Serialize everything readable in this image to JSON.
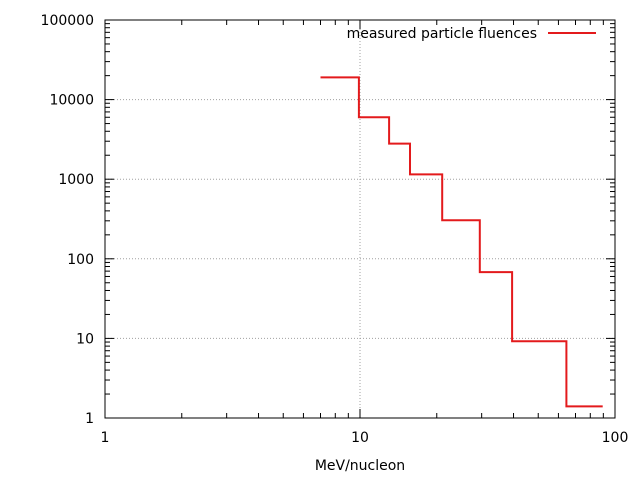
{
  "chart_data": {
    "type": "line",
    "title": "",
    "xlabel": "MeV/nucleon",
    "ylabel": "",
    "x_scale": "log",
    "y_scale": "log",
    "xlim": [
      1,
      100
    ],
    "ylim": [
      1,
      100000
    ],
    "grid": true,
    "legend_position": "top-right",
    "x_ticks": [
      "1",
      "10",
      "100"
    ],
    "y_ticks": [
      "1",
      "10",
      "100",
      "1000",
      "10000",
      "100000"
    ],
    "series": [
      {
        "name": "measured particle fluences",
        "color": "#e31a1c",
        "step": "histogram",
        "bins": [
          {
            "x_low": 7.0,
            "x_high": 9.9,
            "y": 19000
          },
          {
            "x_low": 9.9,
            "x_high": 13.0,
            "y": 6000
          },
          {
            "x_low": 13.0,
            "x_high": 15.7,
            "y": 2800
          },
          {
            "x_low": 15.7,
            "x_high": 21.0,
            "y": 1150
          },
          {
            "x_low": 21.0,
            "x_high": 29.5,
            "y": 305
          },
          {
            "x_low": 29.5,
            "x_high": 39.5,
            "y": 68
          },
          {
            "x_low": 39.5,
            "x_high": 64.5,
            "y": 9.2
          },
          {
            "x_low": 64.5,
            "x_high": 89.5,
            "y": 1.4
          }
        ]
      }
    ]
  }
}
